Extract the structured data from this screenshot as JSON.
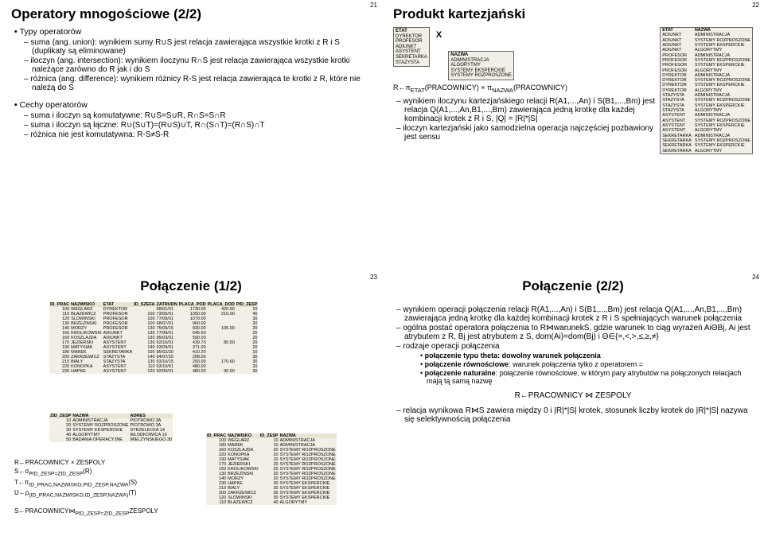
{
  "q1": {
    "page": "21",
    "title": "Operatory mnogościowe (2/2)",
    "b1": "Typy operatorów",
    "d1": "suma (ang. union): wynikiem sumy R∪S jest relacja zawierająca wszystkie krotki z R i S (duplikaty są eliminowane)",
    "d2": "iloczyn (ang. intersection): wynikiem iloczynu R∩S jest relacja zawierająca wszystkie krotki należące zarówno do R jak i do S",
    "d3": "różnica (ang. difference): wynikiem różnicy R-S jest relacja zawierająca te krotki z R, które nie należą do S",
    "b2": "Cechy operatorów",
    "d4": "suma i iloczyn są komutatywne: R∪S=S∪R, R∩S=S∩R",
    "d5": "suma i iloczyn są łączne: R∪(S∪T)=(R∪S)∪T, R∩(S∩T)=(R∩S)∩T",
    "d6": "różnica nie jest komutatywna: R-S≠S-R"
  },
  "q2": {
    "page": "22",
    "title": "Produkt kartezjański",
    "etat_h": "ETAT",
    "etat": [
      "DYREKTOR",
      "PROFESOR",
      "ADIUNKT",
      "ASYSTENT",
      "SEKRETARKA",
      "STAZYSTA"
    ],
    "nazwa_h": "NAZWA",
    "nazwa": [
      "ADMINISTRACJA",
      "ALGORYTMY",
      "SYSTEMY EKSPERCKIE",
      "SYSTEMY ROZPROSZONE"
    ],
    "x": "X",
    "formula": "R←πETAT(PRACOWNICY) × πNAZWA(PRACOWNICY)",
    "d1": "wynikiem iloczynu kartezjańskiego relacji R(A1,...,An) i S(B1,...,Bm) jest relacja Q(A1,...,An,B1,...,Bm) zawierająca jedną krotkę dla każdej kombinacji krotek z R i S, |Q| = |R|*|S|",
    "d2": "iloczyn kartezjański jako samodzielna operacja najczęściej pozbawiony jest sensu",
    "res_h1": "ETAT",
    "res_h2": "NAZWA",
    "res": [
      [
        "ADIUNKT",
        "ADMINISTRACJA"
      ],
      [
        "ADIUNKT",
        "SYSTEMY ROZPROSZONE"
      ],
      [
        "ADIUNKT",
        "SYSTEMY EKSPERCKIE"
      ],
      [
        "ADIUNKT",
        "ALGORYTMY"
      ],
      [
        "PROFESOR",
        "ADMINISTRACJA"
      ],
      [
        "PROFESOR",
        "SYSTEMY ROZPROSZONE"
      ],
      [
        "PROFESOR",
        "SYSTEMY EKSPERCKIE"
      ],
      [
        "PROFESOR",
        "ALGORYTMY"
      ],
      [
        "DYREKTOR",
        "ADMINISTRACJA"
      ],
      [
        "DYREKTOR",
        "SYSTEMY ROZPROSZONE"
      ],
      [
        "DYREKTOR",
        "SYSTEMY EKSPERCKIE"
      ],
      [
        "DYREKTOR",
        "ALGORYTMY"
      ],
      [
        "STAZYSTA",
        "ADMINISTRACJA"
      ],
      [
        "STAZYSTA",
        "SYSTEMY ROZPROSZONE"
      ],
      [
        "STAZYSTA",
        "SYSTEMY EKSPERCKIE"
      ],
      [
        "STAZYSTA",
        "ALGORYTMY"
      ],
      [
        "ASYSTENT",
        "ADMINISTRACJA"
      ],
      [
        "ASYSTENT",
        "SYSTEMY ROZPROSZONE"
      ],
      [
        "ASYSTENT",
        "SYSTEMY EKSPERCKIE"
      ],
      [
        "ASYSTENT",
        "ALGORYTMY"
      ],
      [
        "SEKRETARKA",
        "ADMINISTRACJA"
      ],
      [
        "SEKRETARKA",
        "SYSTEMY ROZPROSZONE"
      ],
      [
        "SEKRETARKA",
        "SYSTEMY EKSPERCKIE"
      ],
      [
        "SEKRETARKA",
        "ALGORYTMY"
      ]
    ]
  },
  "q3": {
    "page": "23",
    "title": "Połączenie (1/2)",
    "t1_h": [
      "ID_PRAC",
      "NAZWISKO",
      "ETAT",
      "ID_SZEFA",
      "ZATRUDN",
      "PLACA_POD",
      "PLACA_DOD",
      "PID_ZESP"
    ],
    "t1": [
      [
        "100",
        "WEGLARZ",
        "DYREKTOR",
        "",
        "68/01/01",
        "1730.00",
        "420.50",
        "10"
      ],
      [
        "110",
        "BLAZEWICZ",
        "PROFESOR",
        "100",
        "73/05/01",
        "1350.00",
        "210.00",
        "40"
      ],
      [
        "120",
        "SLOWINSKI",
        "PROFESOR",
        "100",
        "77/09/01",
        "1070.00",
        "",
        "30"
      ],
      [
        "130",
        "BRZEZINSKI",
        "PROFESOR",
        "100",
        "68/07/01",
        "960.00",
        "",
        "20"
      ],
      [
        "140",
        "MORZY",
        "PROFESOR",
        "130",
        "75/09/15",
        "830.00",
        "105.00",
        "20"
      ],
      [
        "150",
        "KROLIKOWSKI",
        "ADIUNKT",
        "130",
        "77/09/01",
        "645.50",
        "",
        "20"
      ],
      [
        "160",
        "KOSZLAJDA",
        "ADIUNKT",
        "130",
        "85/03/01",
        "590.00",
        "",
        "20"
      ],
      [
        "170",
        "JEZIERSKI",
        "ASYSTENT",
        "130",
        "92/10/01",
        "439.70",
        "80.50",
        "20"
      ],
      [
        "190",
        "MATYSIAK",
        "ASYSTENT",
        "140",
        "93/09/01",
        "371.00",
        "",
        "20"
      ],
      [
        "180",
        "MAREK",
        "SEKRETARKA",
        "100",
        "85/02/20",
        "410.20",
        "",
        "10"
      ],
      [
        "200",
        "ZAKRZEWICZ",
        "STAZYSTA",
        "140",
        "94/07/15",
        "208.00",
        "",
        "30"
      ],
      [
        "210",
        "BIALY",
        "STAZYSTA",
        "130",
        "93/10/15",
        "250.00",
        "170.60",
        "30"
      ],
      [
        "220",
        "KONOPKA",
        "ASYSTENT",
        "110",
        "93/10/01",
        "480.00",
        "",
        "20"
      ],
      [
        "230",
        "HAPKE",
        "ASYSTENT",
        "120",
        "92/09/01",
        "480.00",
        "90.00",
        "30"
      ]
    ],
    "t2_h": [
      "ZID_ZESP",
      "NAZWA",
      "ADRES"
    ],
    "t2": [
      [
        "10",
        "ADMINISTRACJA",
        "PIOTROWO 3A"
      ],
      [
        "20",
        "SYSTEMY ROZPROSZONE",
        "PIOTROWO 3A"
      ],
      [
        "30",
        "SYSTEMY EKSPERCKIE",
        "STRZELECKA 14"
      ],
      [
        "40",
        "ALGORYTMY",
        "WLODKOWICA 16"
      ],
      [
        "50",
        "BADANIA OPERACYJNE",
        "MIELZYNSKIEGO 30"
      ]
    ],
    "f1": "R←PRACOWNICY × ZESPOLY",
    "f2": "S←σPID_ZESP=ZID_ZESP(R)",
    "f3": "T←πID_PRAC,NAZWISKO,PID_ZESP,NAZWA(S)",
    "f4": "U←ρ(ID_PRAC,NAZWISKO,ID_ZESP,NAZWA)(T)",
    "bottom": "S←PRACOWNICY⋈PID_ZESP=ZID_ZESPZESPOLY",
    "t3_h": [
      "ID_PRAC",
      "NAZWISKO",
      "ID_ZESP",
      "NAZWA"
    ],
    "t3": [
      [
        "100",
        "WEGLARZ",
        "10",
        "ADMINISTRACJA"
      ],
      [
        "180",
        "MAREK",
        "10",
        "ADMINISTRACJA"
      ],
      [
        "160",
        "KOSZLAJDA",
        "20",
        "SYSTEMY ROZPROSZONE"
      ],
      [
        "220",
        "KONOPKA",
        "20",
        "SYSTEMY ROZPROSZONE"
      ],
      [
        "190",
        "MATYSIAK",
        "20",
        "SYSTEMY ROZPROSZONE"
      ],
      [
        "170",
        "JEZIERSKI",
        "20",
        "SYSTEMY ROZPROSZONE"
      ],
      [
        "150",
        "KROLIKOWSKI",
        "20",
        "SYSTEMY ROZPROSZONE"
      ],
      [
        "130",
        "BRZEZINSKI",
        "20",
        "SYSTEMY ROZPROSZONE"
      ],
      [
        "140",
        "MORZY",
        "20",
        "SYSTEMY ROZPROSZONE"
      ],
      [
        "230",
        "HAPKE",
        "30",
        "SYSTEMY EKSPERCKIE"
      ],
      [
        "210",
        "BIALY",
        "30",
        "SYSTEMY EKSPERCKIE"
      ],
      [
        "200",
        "ZAKRZEWICZ",
        "30",
        "SYSTEMY EKSPERCKIE"
      ],
      [
        "120",
        "SLOWINSKI",
        "30",
        "SYSTEMY EKSPERCKIE"
      ],
      [
        "110",
        "BLAZEWICZ",
        "40",
        "ALGORYTMY"
      ]
    ]
  },
  "q4": {
    "page": "24",
    "title": "Połączenie (2/2)",
    "d1": "wynikiem operacji połączenia relacji R(A1,...,An) i S(B1,...,Bm) jest relacja Q(A1,...,An,B1,...,Bm) zawierająca jedną krotkę dla każdej kombinacji krotek z R i S spełniających warunek połączenia",
    "d2": "ogólna postać operatora połączenia to R⋈warunekS, gdzie warunek to ciąg wyrażeń AiΘBj, Ai jest atrybutem z R, Bj jest atrybutem z S, dom(Ai)=dom(Bj) i Θ∈{=,<,>,≤,≥,≠}",
    "d3": "rodzaje operacji połączenia",
    "s1": "połączenie typu theta: dowolny warunek połączenia",
    "s2": "połączenie równościowe: warunek połączenia tylko z operatorem =",
    "s3": "połączenie naturalne: połączenie równościowe, w którym pary atrybutów na połączonych relacjach mają tą samą nazwę",
    "f1": "R←PRACOWNICY ⋈ ZESPOLY",
    "d4": "relacja wynikowa R⋈S zawiera między 0 i |R|*|S| krotek, stosunek liczby krotek do |R|*|S| nazywa się selektywnością połączenia"
  }
}
